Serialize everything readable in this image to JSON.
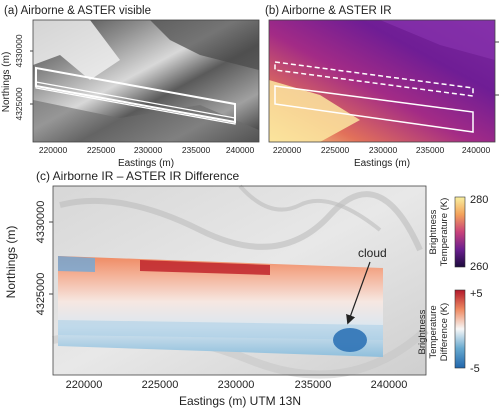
{
  "panels": {
    "a": {
      "title": "(a) Airborne & ASTER visible",
      "xlabel": "Eastings (m)",
      "ylabel": "Northings (m)",
      "xticks": [
        "220000",
        "225000",
        "230000",
        "235000",
        "240000"
      ],
      "yticks": [
        "4330000",
        "4325000"
      ]
    },
    "b": {
      "title": "(b) Airborne & ASTER IR",
      "xlabel": "Eastings (m)",
      "xticks": [
        "220000",
        "225000",
        "230000",
        "235000",
        "240000"
      ]
    },
    "c": {
      "title": "(c) Airborne IR – ASTER IR Difference",
      "xlabel": "Eastings (m) UTM 13N",
      "ylabel": "Northings (m)",
      "xticks": [
        "220000",
        "225000",
        "230000",
        "235000",
        "240000"
      ],
      "yticks": [
        "4330000",
        "4325000"
      ],
      "annotation": "cloud"
    }
  },
  "colorbars": {
    "temperature": {
      "label_line1": "Brightness",
      "label_line2": "Temperature (K)",
      "max_label": "280",
      "min_label": "260",
      "colors": [
        "#f9f0a0",
        "#f3a25a",
        "#c9427a",
        "#6b1f8f",
        "#1c0b3d"
      ]
    },
    "difference": {
      "label_line1": "Brightness",
      "label_line2": "Temperature",
      "label_line3": "Difference (K)",
      "max_label": "+5",
      "min_label": "-5",
      "colors": [
        "#b2182b",
        "#ef8a62",
        "#f7f7f7",
        "#67a9cf",
        "#2166ac"
      ]
    }
  },
  "chart_data": [
    {
      "type": "heatmap",
      "title": "(a) Airborne & ASTER visible",
      "xlabel": "Eastings (m)",
      "ylabel": "Northings (m)",
      "x_ticks": [
        220000,
        225000,
        230000,
        235000,
        240000
      ],
      "y_ticks": [
        4330000,
        4325000
      ],
      "xlim": [
        218000,
        241000
      ],
      "ylim": [
        4322000,
        4332000
      ]
    },
    {
      "type": "heatmap",
      "title": "(b) Airborne & ASTER IR",
      "xlabel": "Eastings (m)",
      "x_ticks": [
        220000,
        225000,
        230000,
        235000,
        240000
      ],
      "xlim": [
        218000,
        241000
      ],
      "colorbar": {
        "label": "Brightness Temperature (K)",
        "range": [
          260,
          280
        ]
      }
    },
    {
      "type": "heatmap",
      "title": "(c) Airborne IR – ASTER IR Difference",
      "xlabel": "Eastings (m) UTM 13N",
      "ylabel": "Northings (m)",
      "x_ticks": [
        220000,
        225000,
        230000,
        235000,
        240000
      ],
      "y_ticks": [
        4330000,
        4325000
      ],
      "xlim": [
        218000,
        241000
      ],
      "ylim": [
        4322000,
        4332000
      ],
      "colorbar": {
        "label": "Brightness Temperature Difference (K)",
        "range": [
          -5,
          5
        ]
      },
      "annotations": [
        "cloud"
      ]
    }
  ]
}
